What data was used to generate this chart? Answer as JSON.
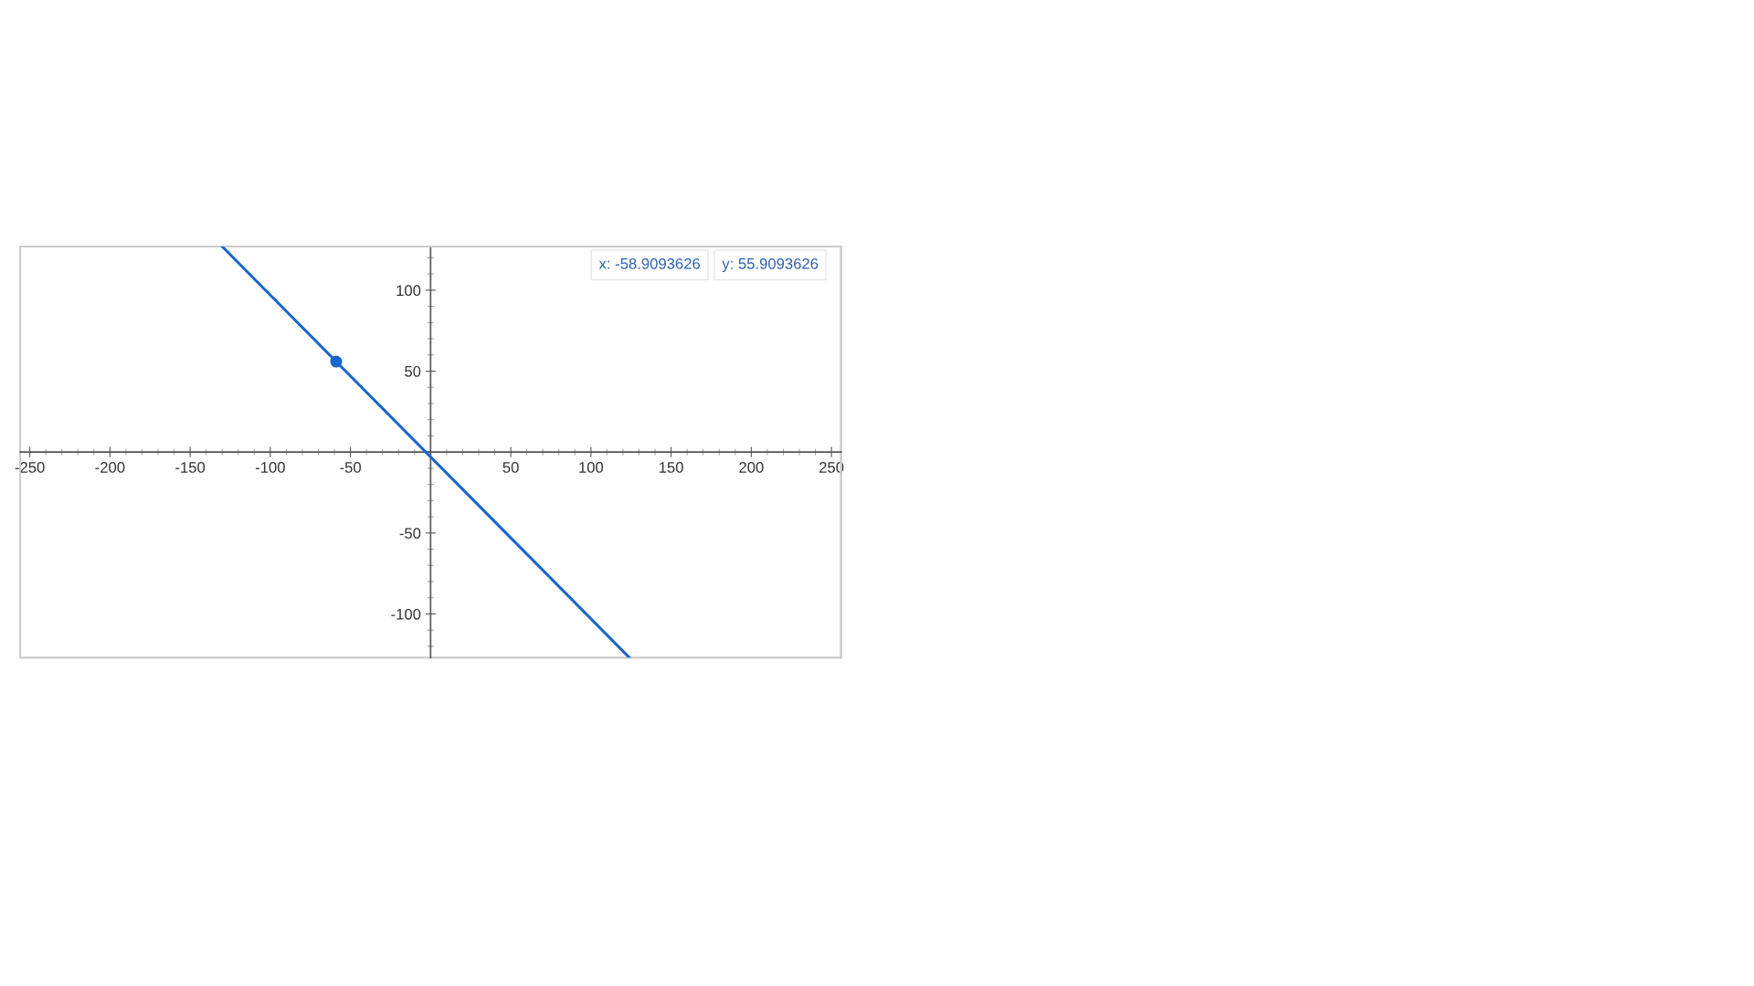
{
  "chart_data": {
    "type": "line",
    "xlim": [
      -256,
      256
    ],
    "ylim": [
      -127,
      127
    ],
    "xticks": [
      -250,
      -200,
      -150,
      -100,
      -50,
      50,
      100,
      150,
      200,
      250
    ],
    "yticks": [
      -100,
      -50,
      50,
      100
    ],
    "series": [
      {
        "color": "#1a66cc",
        "x": [
          -130,
          124
        ],
        "values": [
          127,
          -127
        ]
      },
      {
        "type": "scatter",
        "color": "#1a66cc",
        "x": [
          -58.9
        ],
        "values": [
          55.9
        ]
      }
    ],
    "annotations": [
      "x: -58.9093626",
      "y: 55.9093626"
    ],
    "grid": false,
    "legend": false,
    "line_style": "solid"
  }
}
